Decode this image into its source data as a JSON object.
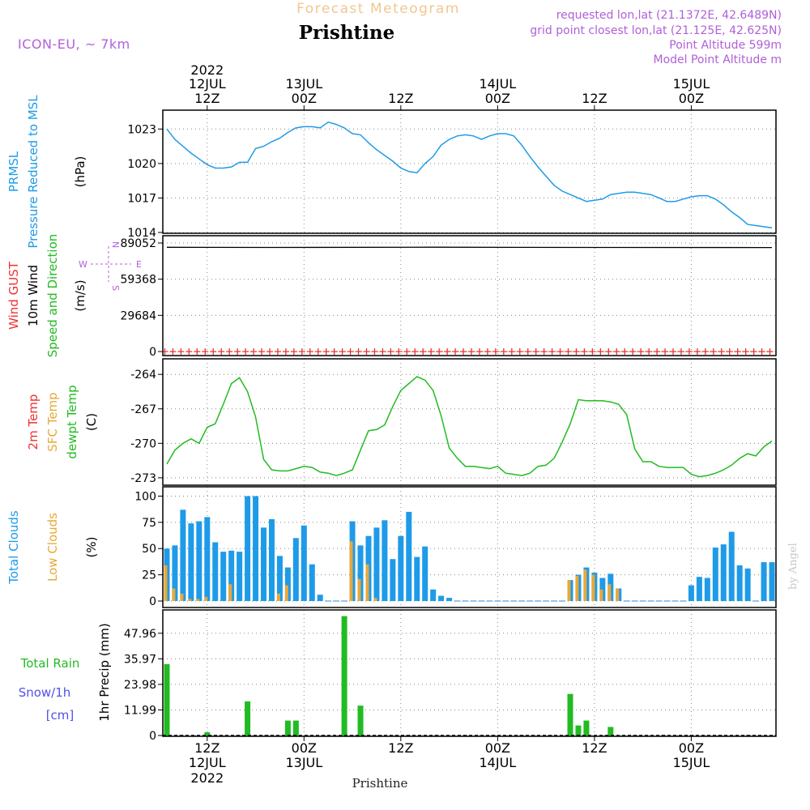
{
  "header": {
    "product": "Forecast Meteogram",
    "location": "Prishtine",
    "model": "ICON-EU, ~ 7km",
    "requested": "requested lon,lat (21.1372E, 42.6489N)",
    "grid_point": "grid point closest lon,lat (21.125E, 42.625N)",
    "point_altitude": "Point Altitude 599m",
    "model_altitude": "Model Point Altitude m"
  },
  "footer": {
    "location": "Prishtine",
    "credit": "by Angel"
  },
  "time_axis": {
    "top": [
      {
        "line1": "2022",
        "line2": "12JUL",
        "line3": "12Z",
        "x": 12
      },
      {
        "line1": "",
        "line2": "13JUL",
        "line3": "00Z",
        "x": 24
      },
      {
        "line1": "",
        "line2": "",
        "line3": "12Z",
        "x": 36
      },
      {
        "line1": "",
        "line2": "14JUL",
        "line3": "00Z",
        "x": 48
      },
      {
        "line1": "",
        "line2": "",
        "line3": "12Z",
        "x": 60
      },
      {
        "line1": "",
        "line2": "15JUL",
        "line3": "00Z",
        "x": 72
      }
    ],
    "bottom": [
      {
        "line1": "12Z",
        "line2": "12JUL",
        "line3": "2022",
        "x": 12
      },
      {
        "line1": "00Z",
        "line2": "13JUL",
        "line3": "",
        "x": 24
      },
      {
        "line1": "12Z",
        "line2": "",
        "line3": "",
        "x": 36
      },
      {
        "line1": "00Z",
        "line2": "14JUL",
        "line3": "",
        "x": 48
      },
      {
        "line1": "12Z",
        "line2": "",
        "line3": "",
        "x": 60
      },
      {
        "line1": "00Z",
        "line2": "15JUL",
        "line3": "",
        "x": 72
      }
    ],
    "xrange": [
      6.5,
      82.5
    ]
  },
  "chart_data": [
    {
      "type": "line",
      "panel": "pressure",
      "side_labels": [
        {
          "text": "PRMSL",
          "color": "#1e9be8"
        },
        {
          "text": "Pressure Reduced to MSL",
          "color": "#1e9be8"
        },
        {
          "text": "(hPa)",
          "color": "#000000"
        }
      ],
      "ylim": [
        1014,
        1024.5
      ],
      "yticks": [
        1014,
        1017,
        1020,
        1023
      ],
      "yticklabels": [
        "1014",
        "1017",
        "1020",
        "1023"
      ],
      "series": [
        {
          "color": "#1e9be8",
          "x": [
            7,
            8,
            9,
            10,
            11,
            12,
            13,
            14,
            15,
            16,
            17,
            18,
            19,
            20,
            21,
            22,
            23,
            24,
            25,
            26,
            27,
            28,
            29,
            30,
            31,
            32,
            33,
            34,
            35,
            36,
            37,
            38,
            39,
            40,
            41,
            42,
            43,
            44,
            45,
            46,
            47,
            48,
            49,
            50,
            51,
            52,
            53,
            54,
            55,
            56,
            57,
            58,
            59,
            60,
            61,
            62,
            63,
            64,
            65,
            66,
            67,
            68,
            69,
            70,
            71,
            72,
            73,
            74,
            75,
            76,
            77,
            78,
            79,
            80,
            81,
            82
          ],
          "values": [
            1023.0,
            1022.1,
            1021.5,
            1020.9,
            1020.4,
            1019.9,
            1019.6,
            1019.6,
            1019.7,
            1020.1,
            1020.1,
            1021.3,
            1021.5,
            1021.9,
            1022.2,
            1022.7,
            1023.1,
            1023.2,
            1023.2,
            1023.1,
            1023.6,
            1023.4,
            1023.1,
            1022.6,
            1022.5,
            1021.8,
            1021.2,
            1020.7,
            1020.2,
            1019.6,
            1019.3,
            1019.2,
            1020.0,
            1020.6,
            1021.6,
            1022.1,
            1022.4,
            1022.5,
            1022.4,
            1022.1,
            1022.4,
            1022.6,
            1022.6,
            1022.4,
            1021.6,
            1020.6,
            1019.7,
            1018.9,
            1018.1,
            1017.6,
            1017.3,
            1017.0,
            1016.7,
            1016.8,
            1016.9,
            1017.3,
            1017.4,
            1017.5,
            1017.5,
            1017.4,
            1017.3,
            1017.0,
            1016.7,
            1016.7,
            1016.9,
            1017.1,
            1017.2,
            1017.2,
            1016.9,
            1016.4,
            1015.8,
            1015.3,
            1014.7,
            1014.6,
            1014.5,
            1014.4
          ]
        }
      ]
    },
    {
      "type": "line",
      "panel": "wind",
      "side_labels": [
        {
          "text": "Wind GUST",
          "color": "#ee3030"
        },
        {
          "text": "10m Wind",
          "color": "#000000"
        },
        {
          "text": "Speed and Direction",
          "color": "#22bb22"
        },
        {
          "text": "(m/s)",
          "color": "#000000"
        }
      ],
      "compass": {
        "n": "N",
        "s": "S",
        "e": "E",
        "w": "W",
        "color": "#b060d8"
      },
      "ylim": [
        0,
        89052
      ],
      "yticks": [
        0,
        29684,
        59368,
        89052
      ],
      "yticklabels": [
        "0",
        "29684",
        "59368",
        "89052"
      ],
      "series": [
        {
          "name": "10m Wind",
          "color": "#000000",
          "x": [
            7,
            20,
            40,
            60,
            82
          ],
          "values": [
            85500,
            85400,
            85600,
            85400,
            85300
          ]
        },
        {
          "name": "Wind GUST",
          "color": "#ee3030",
          "marker": "+",
          "x_start": 6.75,
          "x_step": 1,
          "count": 76,
          "value": 0
        }
      ]
    },
    {
      "type": "line",
      "panel": "temperature",
      "side_labels": [
        {
          "text": "2m Temp",
          "color": "#ee3030"
        },
        {
          "text": "SFC Temp",
          "color": "#e8a838"
        },
        {
          "text": "dewpt Temp",
          "color": "#22bb22"
        },
        {
          "text": "(C)",
          "color": "#000000"
        }
      ],
      "ylim": [
        -273.5,
        -263
      ],
      "yticks": [
        -273,
        -270,
        -267,
        -264
      ],
      "yticklabels": [
        "-273",
        "-270",
        "-267",
        "-264"
      ],
      "series": [
        {
          "name": "dewpt Temp",
          "color": "#22bb22",
          "x": [
            7,
            8,
            9,
            10,
            11,
            12,
            13,
            14,
            15,
            16,
            17,
            18,
            19,
            20,
            21,
            22,
            23,
            24,
            25,
            26,
            27,
            28,
            29,
            30,
            31,
            32,
            33,
            34,
            35,
            36,
            37,
            38,
            39,
            40,
            41,
            42,
            43,
            44,
            45,
            46,
            47,
            48,
            49,
            50,
            51,
            52,
            53,
            54,
            55,
            56,
            57,
            58,
            59,
            60,
            61,
            62,
            63,
            64,
            65,
            66,
            67,
            68,
            69,
            70,
            71,
            72,
            73,
            74,
            75,
            76,
            77,
            78,
            79,
            80,
            81,
            82
          ],
          "values": [
            -271.8,
            -270.6,
            -270.0,
            -269.6,
            -270.0,
            -268.6,
            -268.3,
            -266.6,
            -264.8,
            -264.3,
            -265.5,
            -267.7,
            -271.4,
            -272.3,
            -272.4,
            -272.4,
            -272.2,
            -272.0,
            -272.1,
            -272.5,
            -272.6,
            -272.8,
            -272.6,
            -272.3,
            -270.6,
            -268.9,
            -268.8,
            -268.4,
            -266.8,
            -265.4,
            -264.8,
            -264.2,
            -264.5,
            -265.4,
            -267.6,
            -270.4,
            -271.3,
            -272.0,
            -272.0,
            -272.1,
            -272.2,
            -272.0,
            -272.6,
            -272.7,
            -272.8,
            -272.6,
            -272.0,
            -271.9,
            -271.3,
            -269.9,
            -268.3,
            -266.2,
            -266.3,
            -266.3,
            -266.3,
            -266.4,
            -266.6,
            -267.5,
            -270.5,
            -271.6,
            -271.6,
            -272.0,
            -272.1,
            -272.1,
            -272.1,
            -272.7,
            -272.9,
            -272.8,
            -272.6,
            -272.3,
            -271.9,
            -271.3,
            -270.9,
            -271.1,
            -270.3,
            -269.8
          ]
        }
      ]
    },
    {
      "type": "bar",
      "panel": "clouds",
      "side_labels": [
        {
          "text": "Total Clouds",
          "color": "#1e9be8"
        },
        {
          "text": "Low Clouds",
          "color": "#e8a838"
        },
        {
          "text": "(%)",
          "color": "#000000"
        }
      ],
      "ylim": [
        0,
        105
      ],
      "yticks": [
        0,
        25,
        50,
        75,
        100
      ],
      "yticklabels": [
        "0",
        "25",
        "50",
        "75",
        "100"
      ],
      "x": [
        7,
        8,
        9,
        10,
        11,
        12,
        13,
        14,
        15,
        16,
        17,
        18,
        19,
        20,
        21,
        22,
        23,
        24,
        25,
        26,
        27,
        28,
        29,
        30,
        31,
        32,
        33,
        34,
        35,
        36,
        37,
        38,
        39,
        40,
        41,
        42,
        43,
        44,
        45,
        46,
        47,
        48,
        49,
        50,
        51,
        52,
        53,
        54,
        55,
        56,
        57,
        58,
        59,
        60,
        61,
        62,
        63,
        64,
        65,
        66,
        67,
        68,
        69,
        70,
        71,
        72,
        73,
        74,
        75,
        76,
        77,
        78,
        79,
        80,
        81,
        82
      ],
      "series": [
        {
          "name": "Total Clouds",
          "color": "#1e9be8",
          "values": [
            50,
            53,
            87,
            74,
            76,
            80,
            56,
            47,
            48,
            47,
            100,
            100,
            70,
            78,
            43,
            32,
            60,
            72,
            35,
            6,
            0,
            0,
            0,
            76,
            53,
            62,
            70,
            77,
            40,
            62,
            85,
            42,
            52,
            11,
            5,
            3,
            0,
            0,
            0,
            0,
            0,
            0,
            0,
            0,
            0,
            0,
            0,
            0,
            0,
            0,
            20,
            25,
            32,
            27,
            22,
            26,
            12,
            0,
            0,
            0,
            0,
            0,
            0,
            0,
            0,
            15,
            23,
            22,
            51,
            54,
            66,
            34,
            31,
            0,
            37,
            37
          ]
        },
        {
          "name": "Low Clouds",
          "color": "#e8a838",
          "values": [
            34,
            12,
            7,
            2,
            2,
            4,
            0,
            0,
            16,
            0,
            0,
            0,
            0,
            0,
            7,
            15,
            0,
            0,
            0,
            0,
            0,
            0,
            0,
            57,
            21,
            35,
            3,
            0,
            0,
            0,
            0,
            0,
            0,
            0,
            0,
            0,
            0,
            0,
            0,
            0,
            0,
            0,
            0,
            0,
            0,
            0,
            0,
            0,
            0,
            0,
            20,
            24,
            30,
            25,
            11,
            16,
            12,
            0,
            0,
            0,
            0,
            0,
            0,
            0,
            0,
            0,
            0,
            0,
            0,
            0,
            0,
            0,
            0,
            0,
            0,
            0
          ]
        }
      ]
    },
    {
      "type": "bar",
      "panel": "precip",
      "side_labels": [
        {
          "text": "Total  Rain",
          "color": "#22bb22"
        },
        {
          "text": "Snow/1h",
          "color": "#5050ee"
        },
        {
          "text": "[cm]",
          "color": "#5050ee"
        },
        {
          "text": "1hr Precip (mm)",
          "color": "#000000"
        }
      ],
      "ylim": [
        0,
        57
      ],
      "yticks": [
        0,
        11.99,
        23.98,
        35.97,
        47.96
      ],
      "yticklabels": [
        "0",
        "11.99",
        "23.98",
        "35.97",
        "47.96"
      ],
      "series": [
        {
          "name": "Total Rain",
          "color": "#22bb22",
          "x": [
            7,
            12,
            17,
            22,
            23,
            29,
            31,
            57,
            58,
            59,
            62
          ],
          "values": [
            33.5,
            1.5,
            16.0,
            7.0,
            7.0,
            56.0,
            14.0,
            19.5,
            4.7,
            7.0,
            4.0
          ]
        }
      ]
    }
  ]
}
